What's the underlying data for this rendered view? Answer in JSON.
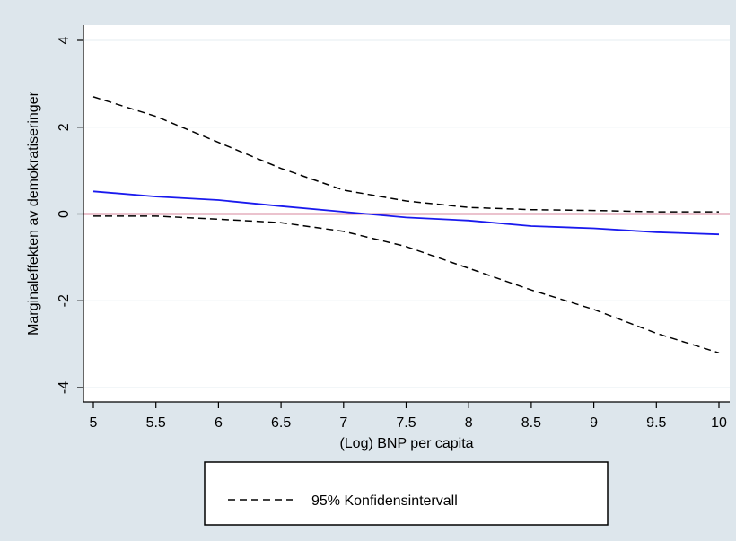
{
  "chart_data": {
    "type": "line",
    "xlabel": "(Log) BNP per capita",
    "ylabel": "Marginaleffekten av demokratiseringer",
    "xlim": [
      5,
      10
    ],
    "ylim": [
      -4,
      4
    ],
    "x_ticks": [
      "5",
      "5.5",
      "6",
      "6.5",
      "7",
      "7.5",
      "8",
      "8.5",
      "9",
      "9.5",
      "10"
    ],
    "y_ticks": [
      "-4",
      "-2",
      "0",
      "2",
      "4"
    ],
    "grid": "horizontal",
    "legend_position": "bottom",
    "reference_line": {
      "y": 0,
      "color": "#b0103a"
    },
    "series": [
      {
        "id": "upper",
        "name": "95% Konfidensintervall",
        "style": "dashed",
        "color": "#000000",
        "points": [
          [
            5,
            2.7
          ],
          [
            5.5,
            2.25
          ],
          [
            6,
            1.65
          ],
          [
            6.5,
            1.05
          ],
          [
            7,
            0.55
          ],
          [
            7.5,
            0.3
          ],
          [
            8,
            0.15
          ],
          [
            8.5,
            0.1
          ],
          [
            9,
            0.08
          ],
          [
            9.5,
            0.05
          ],
          [
            10,
            0.05
          ]
        ]
      },
      {
        "id": "lower",
        "style": "dashed",
        "color": "#000000",
        "points": [
          [
            5,
            -0.05
          ],
          [
            5.5,
            -0.05
          ],
          [
            6,
            -0.12
          ],
          [
            6.5,
            -0.2
          ],
          [
            7,
            -0.4
          ],
          [
            7.5,
            -0.75
          ],
          [
            8,
            -1.25
          ],
          [
            8.5,
            -1.75
          ],
          [
            9,
            -2.2
          ],
          [
            9.5,
            -2.75
          ],
          [
            10,
            -3.2
          ]
        ]
      },
      {
        "id": "estimate",
        "style": "solid",
        "color": "#1a1aee",
        "points": [
          [
            5,
            0.52
          ],
          [
            5.5,
            0.4
          ],
          [
            6,
            0.32
          ],
          [
            6.5,
            0.18
          ],
          [
            7,
            0.05
          ],
          [
            7.5,
            -0.08
          ],
          [
            8,
            -0.15
          ],
          [
            8.5,
            -0.28
          ],
          [
            9,
            -0.33
          ],
          [
            9.5,
            -0.42
          ],
          [
            10,
            -0.47
          ]
        ]
      }
    ]
  }
}
